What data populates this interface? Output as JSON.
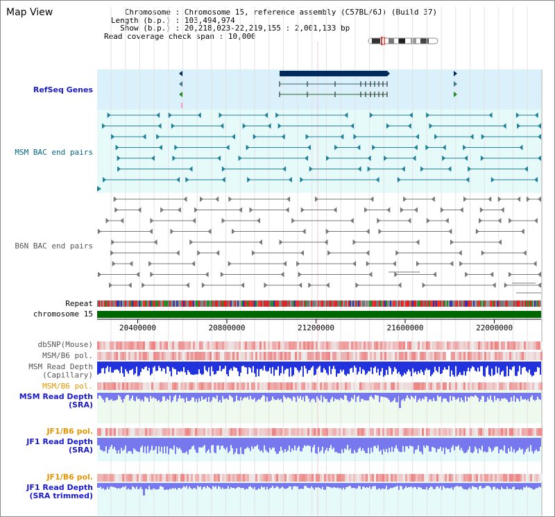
{
  "window": {
    "title": "Map View"
  },
  "info": [
    {
      "key": "Chromosome",
      "value": "Chromosome 15, reference assembly (C57BL/6J) (Build 37)"
    },
    {
      "key": "Length (b.p.)",
      "value": "103,494,974"
    },
    {
      "key": "Show (b.p.)",
      "value": "20,218,023-22,219,155 : 2,001,133 bp"
    },
    {
      "key": "Read coverage check span",
      "value": "10,000"
    }
  ],
  "tracks": {
    "refseq": "RefSeq Genes",
    "msm_bac": "MSM BAC end pairs",
    "b6n_bac": "B6N BAC end pairs",
    "repeat": "Repeat",
    "chromosome": "chromosome 15",
    "dbsnp": "dbSNP(Mouse)",
    "msm_pol1": "MSM/B6 pol.",
    "msm_depth_cap": [
      "MSM Read Depth",
      "(Capillary)"
    ],
    "msm_pol2": "MSM/B6 pol.",
    "msm_depth_sra": [
      "MSM Read Depth",
      "(SRA)"
    ],
    "jf1_pol1": "JF1/B6 pol.",
    "jf1_depth_sra": [
      "JF1 Read Depth",
      "(SRA)"
    ],
    "jf1_pol2": "JF1/B6 pol.",
    "jf1_depth_trim": [
      "JF1 Read Depth",
      "(SRA trimmed)"
    ]
  },
  "axis": {
    "ticks": [
      "20400000",
      "20800000",
      "21200000",
      "21600000",
      "22000000"
    ],
    "tick_values": [
      20400000,
      20800000,
      21200000,
      21600000,
      22000000
    ],
    "start": 20218023,
    "end": 22219155
  },
  "colors": {
    "gene": "#002a5c",
    "msm_bac": "#1f7f99",
    "b6n_bac": "#777777",
    "chromosome": "#006600",
    "label_blue": "#1a1acc",
    "label_teal": "#006680",
    "label_orange": "#e69500",
    "label_gray": "#555555",
    "depth_capillary": "#2233dd",
    "depth_sra": "#7777ee"
  },
  "icons": {
    "ideogram": "chromosome-ideogram-icon"
  }
}
